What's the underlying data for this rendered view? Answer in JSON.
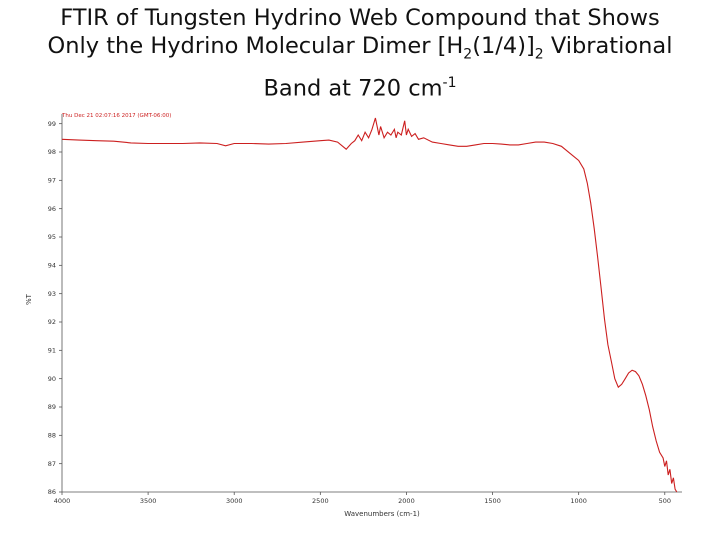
{
  "slide": {
    "title_line1": "FTIR of Tungsten Hydrino Web Compound that Shows",
    "title_line2_pre": "Only the Hydrino Molecular Dimer [H",
    "title_line2_sub1": "2",
    "title_line2_mid": "(1/4)]",
    "title_line2_sub2": "2",
    "title_line2_post": " Vibrational",
    "title_line3_pre": "Band at 720 cm",
    "title_line3_sup": "-1"
  },
  "colors": {
    "trace": "#cc1f1f",
    "axis": "#555555",
    "header": "#cc1f1f",
    "tick_text": "#333333"
  },
  "chart_data": {
    "type": "line",
    "title": "FTIR of Tungsten Hydrino Web Compound that Shows Only the Hydrino Molecular Dimer [H2(1/4)]2 Vibrational Band at 720 cm-1",
    "timestamp": "Thu Dec 21 02:07:16 2017 (GMT-06:00)",
    "xlabel": "Wavenumbers (cm-1)",
    "ylabel": "%T",
    "xlim": [
      4000,
      400
    ],
    "ylim": [
      86,
      99.2
    ],
    "x_ticks": [
      4000,
      3500,
      3000,
      2500,
      2000,
      1500,
      1000,
      500
    ],
    "x_tick_labels": [
      "4000",
      "3500",
      "3000",
      "2500",
      "2000",
      "1500",
      "1000",
      "500"
    ],
    "y_ticks": [
      99,
      98,
      97,
      96,
      95,
      94,
      93,
      92,
      91,
      90,
      89,
      88,
      87,
      86
    ],
    "y_tick_labels": [
      "99",
      "98",
      "97",
      "96",
      "95",
      "94",
      "93",
      "92",
      "91",
      "90",
      "89",
      "88",
      "87",
      "86"
    ],
    "grid": false,
    "series": [
      {
        "points": [
          [
            4000,
            98.45
          ],
          [
            3900,
            98.42
          ],
          [
            3800,
            98.4
          ],
          [
            3700,
            98.38
          ],
          [
            3600,
            98.32
          ],
          [
            3500,
            98.3
          ],
          [
            3400,
            98.3
          ],
          [
            3300,
            98.3
          ],
          [
            3200,
            98.32
          ],
          [
            3100,
            98.3
          ],
          [
            3050,
            98.22
          ],
          [
            3000,
            98.3
          ],
          [
            2900,
            98.3
          ],
          [
            2800,
            98.28
          ],
          [
            2700,
            98.3
          ],
          [
            2600,
            98.35
          ],
          [
            2500,
            98.4
          ],
          [
            2450,
            98.42
          ],
          [
            2400,
            98.35
          ],
          [
            2350,
            98.1
          ],
          [
            2320,
            98.3
          ],
          [
            2300,
            98.4
          ],
          [
            2280,
            98.6
          ],
          [
            2260,
            98.4
          ],
          [
            2240,
            98.7
          ],
          [
            2220,
            98.5
          ],
          [
            2200,
            98.8
          ],
          [
            2180,
            99.2
          ],
          [
            2160,
            98.6
          ],
          [
            2150,
            98.9
          ],
          [
            2130,
            98.5
          ],
          [
            2110,
            98.7
          ],
          [
            2090,
            98.6
          ],
          [
            2070,
            98.8
          ],
          [
            2060,
            98.5
          ],
          [
            2050,
            98.7
          ],
          [
            2030,
            98.6
          ],
          [
            2010,
            99.1
          ],
          [
            2000,
            98.6
          ],
          [
            1990,
            98.8
          ],
          [
            1970,
            98.55
          ],
          [
            1950,
            98.65
          ],
          [
            1930,
            98.45
          ],
          [
            1900,
            98.5
          ],
          [
            1850,
            98.35
          ],
          [
            1800,
            98.3
          ],
          [
            1750,
            98.25
          ],
          [
            1700,
            98.2
          ],
          [
            1650,
            98.2
          ],
          [
            1600,
            98.25
          ],
          [
            1550,
            98.3
          ],
          [
            1500,
            98.3
          ],
          [
            1450,
            98.28
          ],
          [
            1400,
            98.25
          ],
          [
            1350,
            98.25
          ],
          [
            1300,
            98.3
          ],
          [
            1250,
            98.35
          ],
          [
            1200,
            98.35
          ],
          [
            1150,
            98.3
          ],
          [
            1100,
            98.2
          ],
          [
            1050,
            97.95
          ],
          [
            1000,
            97.7
          ],
          [
            970,
            97.4
          ],
          [
            950,
            96.9
          ],
          [
            930,
            96.2
          ],
          [
            910,
            95.3
          ],
          [
            890,
            94.3
          ],
          [
            870,
            93.2
          ],
          [
            850,
            92.1
          ],
          [
            830,
            91.2
          ],
          [
            810,
            90.6
          ],
          [
            790,
            90.0
          ],
          [
            770,
            89.7
          ],
          [
            750,
            89.8
          ],
          [
            730,
            90.0
          ],
          [
            710,
            90.2
          ],
          [
            690,
            90.3
          ],
          [
            670,
            90.25
          ],
          [
            650,
            90.1
          ],
          [
            630,
            89.8
          ],
          [
            610,
            89.4
          ],
          [
            590,
            88.9
          ],
          [
            570,
            88.3
          ],
          [
            550,
            87.8
          ],
          [
            530,
            87.4
          ],
          [
            510,
            87.2
          ],
          [
            500,
            86.9
          ],
          [
            490,
            87.1
          ],
          [
            480,
            86.6
          ],
          [
            470,
            86.8
          ],
          [
            460,
            86.3
          ],
          [
            450,
            86.5
          ],
          [
            440,
            86.1
          ],
          [
            430,
            86.0
          ]
        ]
      }
    ]
  }
}
